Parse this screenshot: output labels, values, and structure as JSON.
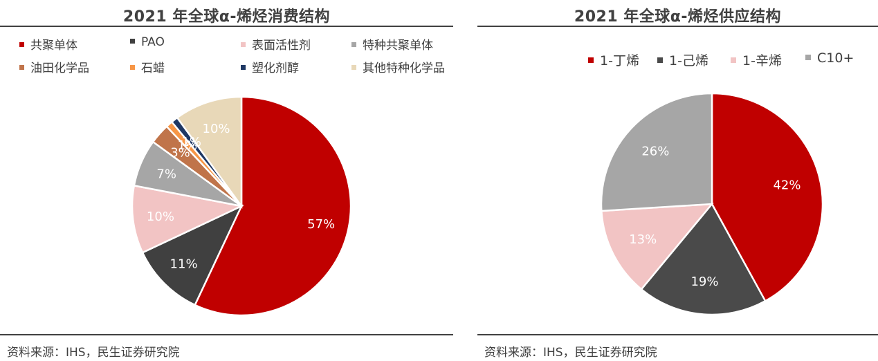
{
  "left": {
    "title": "2021 年全球α-烯烃消费结构",
    "source": "资料来源：IHS，民生证券研究院"
  },
  "right": {
    "title": "2021 年全球α-烯烃供应结构",
    "source": "资料来源：IHS，民生证券研究院"
  },
  "chart_data": [
    {
      "type": "pie",
      "title": "2021 年全球α-烯烃消费结构",
      "categories": [
        "共聚单体",
        "PAO",
        "表面活性剂",
        "特种共聚单体",
        "油田化学品",
        "石蜡",
        "塑化剂醇",
        "其他特种化学品"
      ],
      "values": [
        57,
        11,
        10,
        7,
        3,
        1,
        1,
        10
      ],
      "labels": [
        "57%",
        "11%",
        "10%",
        "7%",
        "3%",
        "1%",
        "1%",
        "10%"
      ],
      "colors": [
        "#c00000",
        "#404040",
        "#f2c4c4",
        "#a6a6a6",
        "#c0744a",
        "#f79646",
        "#1f3864",
        "#e8d8b8"
      ],
      "label_colors": [
        "#ffffff",
        "#ffffff",
        "#ffffff",
        "#ffffff",
        "#ffffff",
        "#ffffff",
        "#ffffff",
        "#ffffff"
      ],
      "legend": "top"
    },
    {
      "type": "pie",
      "title": "2021 年全球α-烯烃供应结构",
      "categories": [
        "1-丁烯",
        "1-己烯",
        "1-辛烯",
        "C10+"
      ],
      "values": [
        42,
        19,
        13,
        26
      ],
      "labels": [
        "42%",
        "19%",
        "13%",
        "26%"
      ],
      "colors": [
        "#c00000",
        "#4a4a4a",
        "#f2c4c4",
        "#a6a6a6"
      ],
      "label_colors": [
        "#ffffff",
        "#ffffff",
        "#ffffff",
        "#ffffff"
      ],
      "legend": "top"
    }
  ]
}
